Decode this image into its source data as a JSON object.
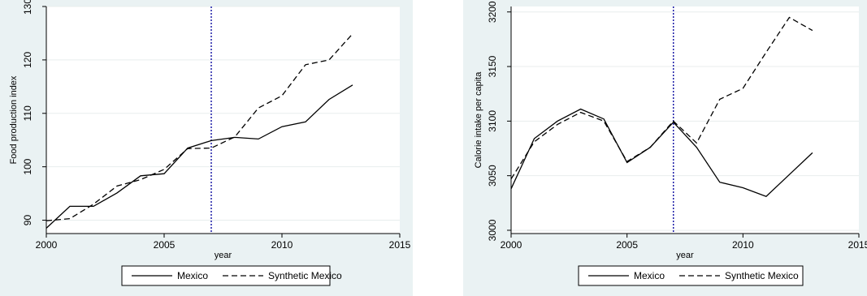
{
  "chart_data": [
    {
      "type": "line",
      "title": "",
      "xlabel": "year",
      "ylabel": "Food production index",
      "xlim": [
        2000,
        2015
      ],
      "ylim": [
        87.5,
        130
      ],
      "xticks": [
        2000,
        2005,
        2010,
        2015
      ],
      "yticks": [
        90,
        100,
        110,
        120,
        130
      ],
      "grid": true,
      "vline": 2007,
      "legend": "bottom",
      "x": [
        2000,
        2001,
        2002,
        2003,
        2004,
        2005,
        2006,
        2007,
        2008,
        2009,
        2010,
        2011,
        2012,
        2013
      ],
      "series": [
        {
          "name": "Mexico",
          "style": "solid",
          "values": [
            88.5,
            92.6,
            92.6,
            95.1,
            98.3,
            98.7,
            103.5,
            104.9,
            105.5,
            105.2,
            107.5,
            108.4,
            112.6,
            115.3
          ]
        },
        {
          "name": "Synthetic Mexico",
          "style": "dashed",
          "values": [
            89.9,
            90.3,
            93.0,
            96.4,
            97.6,
            99.5,
            103.4,
            103.5,
            105.6,
            111.0,
            113.3,
            119.1,
            120.0,
            124.9
          ]
        }
      ]
    },
    {
      "type": "line",
      "title": "",
      "xlabel": "year",
      "ylabel": "Calorie intake per capita",
      "xlim": [
        2000,
        2015
      ],
      "ylim": [
        2997,
        3205
      ],
      "xticks": [
        2000,
        2005,
        2010,
        2015
      ],
      "yticks": [
        3000,
        3050,
        3100,
        3150,
        3200
      ],
      "grid": true,
      "vline": 2007,
      "legend": "bottom",
      "x": [
        2000,
        2001,
        2002,
        2003,
        2004,
        2005,
        2006,
        2007,
        2008,
        2009,
        2010,
        2011,
        2012,
        2013
      ],
      "series": [
        {
          "name": "Mexico",
          "style": "solid",
          "values": [
            3038,
            3084,
            3100,
            3111,
            3102,
            3062,
            3076,
            3099,
            3076,
            3044,
            3039,
            3031,
            3051,
            3071
          ]
        },
        {
          "name": "Synthetic Mexico",
          "style": "dashed",
          "values": [
            3047,
            3081,
            3097,
            3108,
            3100,
            3063,
            3076,
            3100,
            3080,
            3120,
            3130,
            3163,
            3195,
            3183
          ]
        }
      ]
    }
  ]
}
